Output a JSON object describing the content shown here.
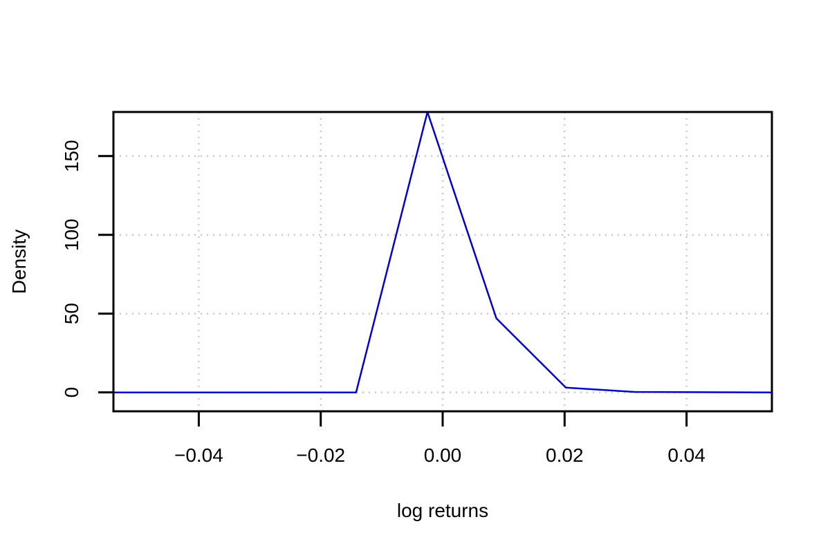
{
  "chart_data": {
    "type": "line",
    "title": "",
    "xlabel": "log returns",
    "ylabel": "Density",
    "xlim": [
      -0.054,
      0.054
    ],
    "ylim": [
      -12,
      178
    ],
    "grid": true,
    "legend": "none",
    "x_ticks": [
      -0.04,
      -0.02,
      0.0,
      0.02,
      0.04
    ],
    "x_tick_labels": [
      "−0.04",
      "−0.02",
      "0.00",
      "0.02",
      "0.04"
    ],
    "y_ticks": [
      0,
      50,
      100,
      150
    ],
    "y_tick_labels": [
      "0",
      "50",
      "100",
      "150"
    ],
    "series": [
      {
        "color": "#0000cd",
        "x": [
          -0.054,
          -0.0142,
          -0.0025,
          0.0088,
          0.0202,
          0.0315,
          0.054
        ],
        "y": [
          0,
          0,
          178,
          47,
          3,
          0.3,
          0
        ]
      }
    ]
  }
}
